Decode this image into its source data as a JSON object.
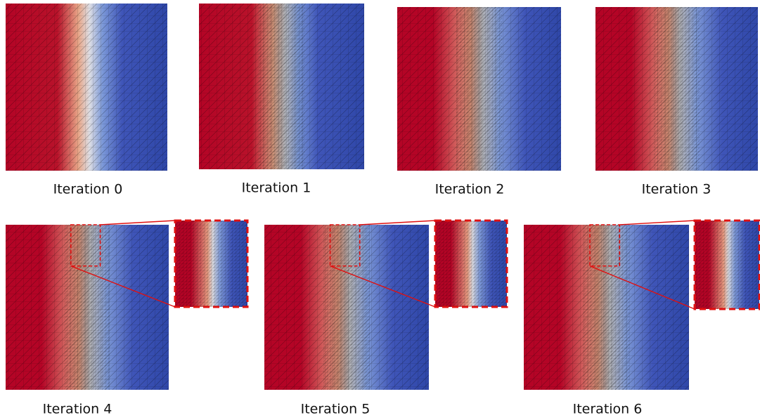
{
  "captions": [
    "Iteration 0",
    "Iteration 1",
    "Iteration 2",
    "Iteration 3",
    "Iteration 4",
    "Iteration 5",
    "Iteration 6"
  ]
}
